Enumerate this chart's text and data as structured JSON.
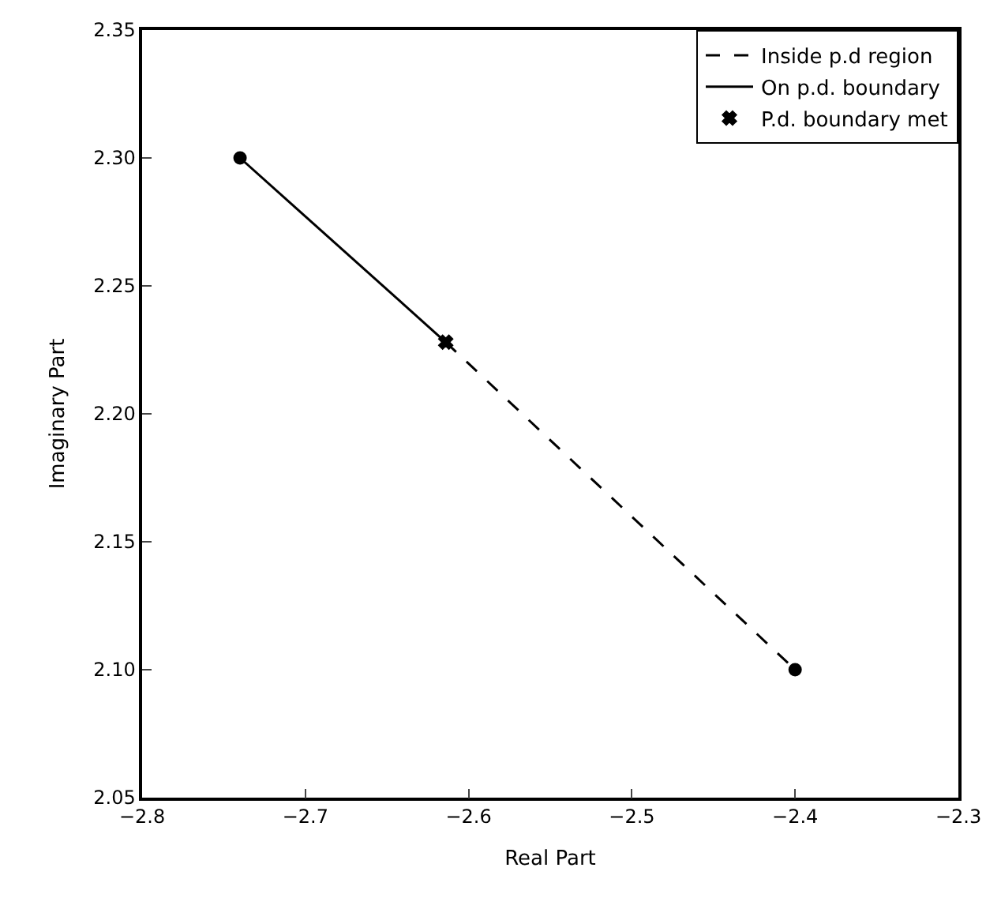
{
  "chart_data": {
    "type": "line",
    "xlabel": "Real Part",
    "ylabel": "Imaginary Part",
    "xlim": [
      -2.8,
      -2.3
    ],
    "xticks": [
      {
        "value": -2.8,
        "label": "−2.8"
      },
      {
        "value": -2.7,
        "label": "−2.7"
      },
      {
        "value": -2.6,
        "label": "−2.6"
      },
      {
        "value": -2.5,
        "label": "−2.5"
      },
      {
        "value": -2.4,
        "label": "−2.4"
      },
      {
        "value": -2.3,
        "label": "−2.3"
      }
    ],
    "ylim": [
      2.05,
      2.35
    ],
    "yticks": [
      {
        "value": 2.05,
        "label": "2.05"
      },
      {
        "value": 2.1,
        "label": "2.10"
      },
      {
        "value": 2.15,
        "label": "2.15"
      },
      {
        "value": 2.2,
        "label": "2.20"
      },
      {
        "value": 2.25,
        "label": "2.25"
      },
      {
        "value": 2.3,
        "label": "2.30"
      },
      {
        "value": 2.35,
        "label": "2.35"
      }
    ],
    "legend": "top right",
    "series": [
      {
        "name": "Inside p.d region",
        "color": "#000000",
        "x": [
          -2.614,
          -2.4
        ],
        "values": [
          2.228,
          2.1
        ],
        "line_style": "dashed",
        "marker": "none"
      },
      {
        "name": "On p.d. boundary",
        "color": "#000000",
        "x": [
          -2.74,
          -2.614
        ],
        "values": [
          2.3,
          2.228
        ],
        "line_style": "solid",
        "marker": "none"
      },
      {
        "name": "P.d. boundary met",
        "type": "scatter",
        "color": "#000000",
        "x": [
          -2.614
        ],
        "values": [
          2.228
        ],
        "marker": "cross"
      },
      {
        "type": "scatter",
        "color": "#000000",
        "x": [
          -2.74
        ],
        "values": [
          2.3
        ],
        "marker": "circle"
      },
      {
        "type": "scatter",
        "color": "#000000",
        "x": [
          -2.4
        ],
        "values": [
          2.1
        ],
        "marker": "circle"
      }
    ]
  }
}
